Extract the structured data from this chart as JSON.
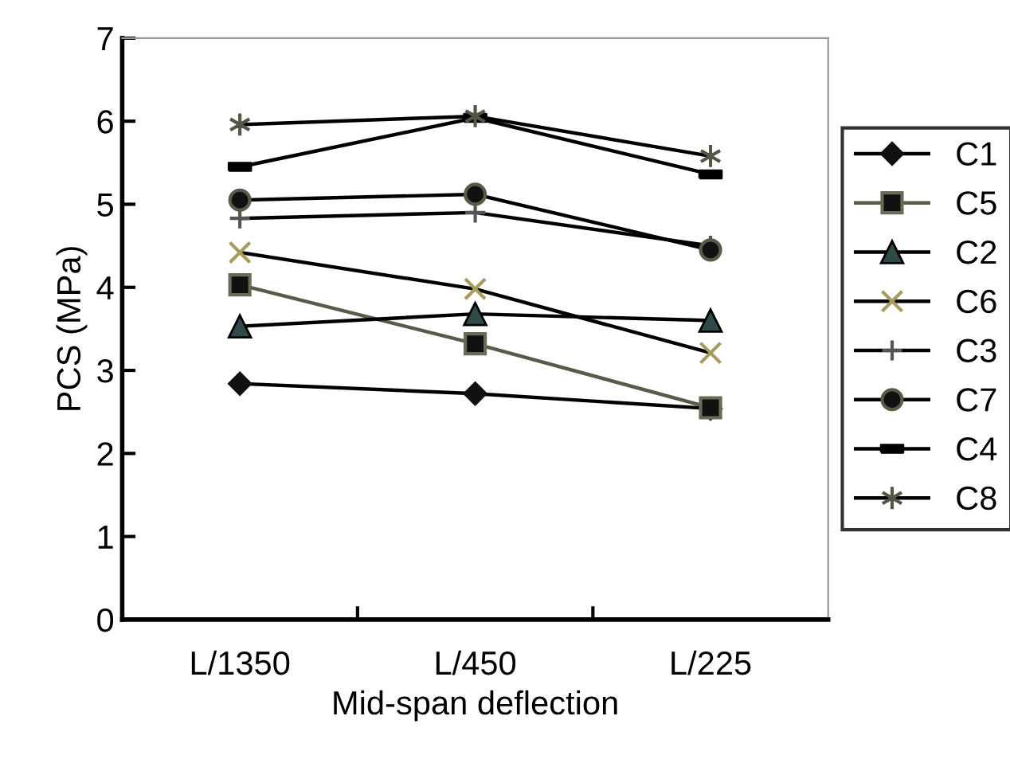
{
  "chart_data": {
    "type": "line",
    "xlabel": "Mid-span deflection",
    "ylabel": "PCS (MPa)",
    "categories": [
      "L/1350",
      "L/450",
      "L/225"
    ],
    "ylim": [
      0,
      7
    ],
    "yticks": [
      0,
      1,
      2,
      3,
      4,
      5,
      6,
      7
    ],
    "grid": false,
    "legend": "right",
    "series": [
      {
        "name": "C1",
        "color": "#000000",
        "marker": "diamond",
        "values": [
          2.84,
          2.72,
          2.54
        ]
      },
      {
        "name": "C5",
        "color": "#5a5a48",
        "marker": "square",
        "values": [
          4.03,
          3.32,
          2.55
        ]
      },
      {
        "name": "C2",
        "color": "#000000",
        "marker": "triangle",
        "values": [
          3.53,
          3.68,
          3.6
        ]
      },
      {
        "name": "C6",
        "color": "#000000",
        "marker": "x",
        "values": [
          4.42,
          3.98,
          3.21
        ]
      },
      {
        "name": "C3",
        "color": "#000000",
        "marker": "plus",
        "values": [
          4.83,
          4.9,
          4.5
        ]
      },
      {
        "name": "C7",
        "color": "#000000",
        "marker": "circle",
        "values": [
          5.05,
          5.12,
          4.45
        ]
      },
      {
        "name": "C4",
        "color": "#000000",
        "marker": "square",
        "values": [
          5.45,
          6.04,
          5.36
        ]
      },
      {
        "name": "C8",
        "color": "#000000",
        "marker": "cross",
        "values": [
          5.96,
          6.06,
          5.58
        ]
      }
    ]
  }
}
